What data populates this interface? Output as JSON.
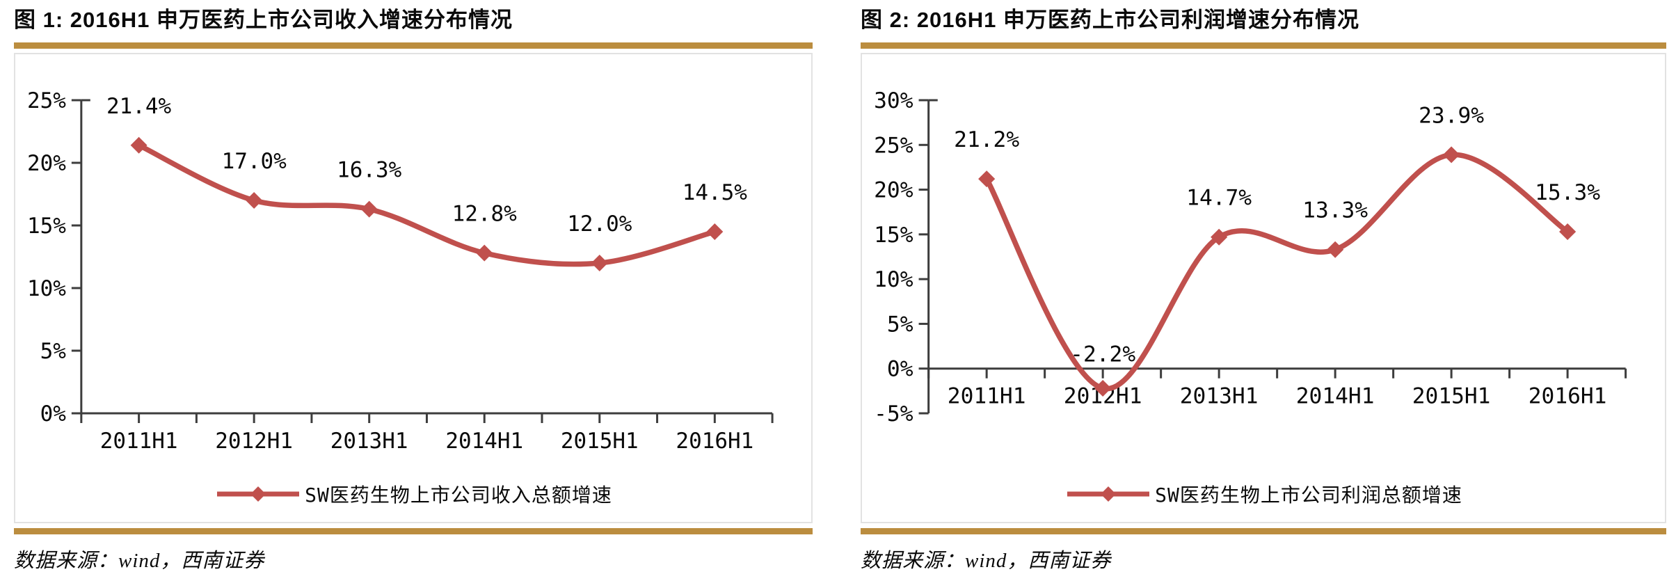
{
  "page": {
    "background": "#ffffff"
  },
  "colors": {
    "accent_gold": "#BB8D3F",
    "line_red": "#C0504D",
    "axis": "#3d3d3d",
    "text": "#0a0a0a"
  },
  "chart_data": [
    {
      "type": "line",
      "title": "图 1:  2016H1 申万医药上市公司收入增速分布情况",
      "categories": [
        "2011H1",
        "2012H1",
        "2013H1",
        "2014H1",
        "2015H1",
        "2016H1"
      ],
      "series": [
        {
          "name": "SW医药生物上市公司收入总额增速",
          "values": [
            21.4,
            17.0,
            16.3,
            12.8,
            12.0,
            14.5
          ]
        }
      ],
      "data_labels": [
        "21.4%",
        "17.0%",
        "16.3%",
        "12.8%",
        "12.0%",
        "14.5%"
      ],
      "ylim": [
        0,
        25
      ],
      "y_step": 5,
      "y_tick_labels": [
        "0%",
        "5%",
        "10%",
        "15%",
        "20%",
        "25%"
      ],
      "legend": "SW医药生物上市公司收入总额增速",
      "legend_position": "bottom",
      "grid": false,
      "smoothed": true,
      "line_color": "#C0504D",
      "source": "数据来源：wind，西南证券"
    },
    {
      "type": "line",
      "title": "图 2:  2016H1 申万医药上市公司利润增速分布情况",
      "categories": [
        "2011H1",
        "2012H1",
        "2013H1",
        "2014H1",
        "2015H1",
        "2016H1"
      ],
      "series": [
        {
          "name": "SW医药生物上市公司利润总额增速",
          "values": [
            21.2,
            -2.2,
            14.7,
            13.3,
            23.9,
            15.3
          ]
        }
      ],
      "data_labels": [
        "21.2%",
        "-2.2%",
        "14.7%",
        "13.3%",
        "23.9%",
        "15.3%"
      ],
      "ylim": [
        -5,
        30
      ],
      "y_step": 5,
      "y_tick_labels": [
        "-5%",
        "0%",
        "5%",
        "10%",
        "15%",
        "20%",
        "25%",
        "30%"
      ],
      "legend": "SW医药生物上市公司利润总额增速",
      "legend_position": "bottom",
      "grid": false,
      "smoothed": true,
      "line_color": "#C0504D",
      "source": "数据来源：wind，西南证券"
    }
  ]
}
